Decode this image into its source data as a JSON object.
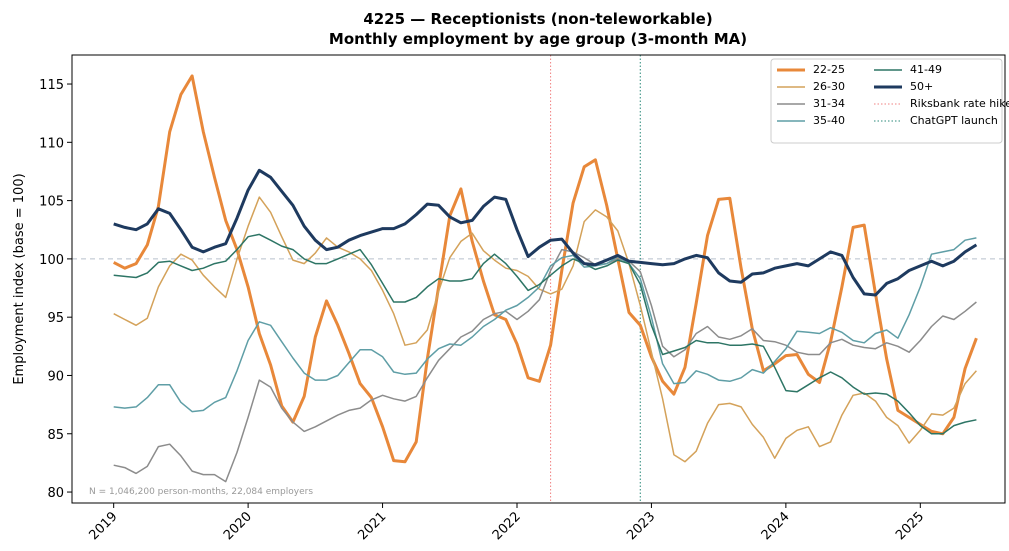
{
  "chart_data": {
    "type": "line",
    "title": "4225 — Receptionists (non-teleworkable)",
    "subtitle": "Monthly employment by age group (3-month MA)",
    "y_label": "Employment index (base = 100)",
    "annotation": "N = 1,046,200 person-months, 22,084 employers",
    "x": [
      2019,
      2019.083,
      2019.167,
      2019.25,
      2019.333,
      2019.417,
      2019.5,
      2019.583,
      2019.667,
      2019.75,
      2019.833,
      2019.917,
      2020,
      2020.083,
      2020.167,
      2020.25,
      2020.333,
      2020.417,
      2020.5,
      2020.583,
      2020.667,
      2020.75,
      2020.833,
      2020.917,
      2021,
      2021.083,
      2021.167,
      2021.25,
      2021.333,
      2021.417,
      2021.5,
      2021.583,
      2021.667,
      2021.75,
      2021.833,
      2021.917,
      2022,
      2022.083,
      2022.167,
      2022.25,
      2022.333,
      2022.417,
      2022.5,
      2022.583,
      2022.667,
      2022.75,
      2022.833,
      2022.917,
      2023,
      2023.083,
      2023.167,
      2023.25,
      2023.333,
      2023.417,
      2023.5,
      2023.583,
      2023.667,
      2023.75,
      2023.833,
      2023.917,
      2024,
      2024.083,
      2024.167,
      2024.25,
      2024.333,
      2024.417,
      2024.5,
      2024.583,
      2024.667,
      2024.75,
      2024.833,
      2024.917,
      2025,
      2025.083,
      2025.167,
      2025.25,
      2025.333,
      2025.417
    ],
    "xlim": [
      2018.69,
      2025.63
    ],
    "xticks": [
      2019,
      2020,
      2021,
      2022,
      2023,
      2024,
      2025
    ],
    "ylim": [
      79.06,
      117.49
    ],
    "yticks": [
      80,
      85,
      90,
      95,
      100,
      105,
      110,
      115
    ],
    "hline": 100,
    "legend": "upper right",
    "series": [
      {
        "name": "22-25",
        "color": "#e8883a",
        "linewidth": 3,
        "values": [
          99.7,
          99.2,
          99.6,
          101.2,
          104.5,
          110.9,
          114.1,
          115.7,
          110.9,
          107.0,
          103.3,
          100.8,
          97.6,
          93.6,
          90.9,
          87.4,
          86.0,
          88.2,
          93.3,
          96.4,
          94.3,
          91.9,
          89.3,
          88.1,
          85.6,
          82.7,
          82.6,
          84.3,
          91.4,
          97.6,
          103.7,
          106.0,
          101.5,
          98.1,
          95.2,
          94.8,
          92.7,
          89.8,
          89.5,
          92.6,
          99.0,
          104.8,
          107.9,
          108.5,
          104.6,
          100.0,
          95.4,
          94.3,
          91.6,
          89.5,
          88.4,
          90.7,
          96.2,
          102.0,
          105.1,
          105.2,
          99.2,
          94.0,
          90.4,
          91.0,
          91.7,
          91.8,
          90.1,
          89.4,
          92.9,
          97.6,
          102.7,
          102.9,
          97.0,
          91.4,
          87.0,
          86.4,
          85.8,
          85.2,
          85.0,
          86.4,
          90.6,
          93.2
        ]
      },
      {
        "name": "26-30",
        "color": "#d4a25a",
        "linewidth": 1.5,
        "values": [
          95.3,
          94.8,
          94.3,
          94.9,
          97.6,
          99.4,
          100.4,
          99.9,
          98.6,
          97.6,
          96.7,
          100.0,
          102.8,
          105.3,
          104.0,
          101.9,
          99.9,
          99.6,
          100.5,
          101.8,
          101.0,
          100.6,
          100.0,
          99.0,
          97.3,
          95.3,
          92.6,
          92.8,
          93.9,
          97.2,
          100.1,
          101.5,
          102.2,
          100.7,
          99.9,
          99.2,
          99.0,
          98.5,
          97.4,
          97.0,
          97.4,
          99.4,
          103.2,
          104.2,
          103.6,
          102.4,
          99.6,
          96.0,
          92.0,
          88.0,
          83.2,
          82.6,
          83.5,
          85.9,
          87.5,
          87.6,
          87.3,
          85.8,
          84.7,
          82.9,
          84.6,
          85.3,
          85.6,
          83.9,
          84.3,
          86.6,
          88.3,
          88.5,
          87.8,
          86.4,
          85.7,
          84.2,
          85.3,
          86.7,
          86.6,
          87.2,
          89.3,
          90.4
        ]
      },
      {
        "name": "31-34",
        "color": "#8c8c8c",
        "linewidth": 1.5,
        "values": [
          82.3,
          82.1,
          81.6,
          82.2,
          83.9,
          84.1,
          83.1,
          81.8,
          81.5,
          81.5,
          80.9,
          83.4,
          86.4,
          89.6,
          89.0,
          87.2,
          86.0,
          85.2,
          85.6,
          86.1,
          86.6,
          87.0,
          87.2,
          87.9,
          88.3,
          88.0,
          87.8,
          88.2,
          89.8,
          91.3,
          92.3,
          93.3,
          93.8,
          94.8,
          95.3,
          95.5,
          94.8,
          95.5,
          96.5,
          99.0,
          100.8,
          100.6,
          100.1,
          99.5,
          99.6,
          100.0,
          99.8,
          98.9,
          96.0,
          92.5,
          91.6,
          92.2,
          93.6,
          94.2,
          93.3,
          93.1,
          93.4,
          94.0,
          93.0,
          92.9,
          92.6,
          92.0,
          91.8,
          91.8,
          92.8,
          93.1,
          92.6,
          92.4,
          92.3,
          92.8,
          92.5,
          92.0,
          93.0,
          94.2,
          95.1,
          94.8,
          95.5,
          96.3
        ]
      },
      {
        "name": "35-40",
        "color": "#5f9ea6",
        "linewidth": 1.5,
        "values": [
          87.3,
          87.2,
          87.3,
          88.1,
          89.2,
          89.2,
          87.7,
          86.9,
          87.0,
          87.7,
          88.1,
          90.4,
          93.0,
          94.6,
          94.3,
          92.9,
          91.5,
          90.2,
          89.6,
          89.6,
          90.0,
          91.1,
          92.2,
          92.2,
          91.6,
          90.3,
          90.1,
          90.2,
          91.4,
          92.3,
          92.7,
          92.6,
          93.3,
          94.2,
          94.8,
          95.6,
          96.0,
          96.7,
          97.6,
          99.4,
          100.1,
          100.3,
          99.3,
          99.4,
          99.6,
          100.2,
          99.6,
          98.3,
          95.0,
          91.0,
          89.3,
          89.4,
          90.4,
          90.1,
          89.6,
          89.5,
          89.8,
          90.5,
          90.2,
          91.2,
          92.3,
          93.8,
          93.7,
          93.6,
          94.1,
          93.7,
          93.0,
          92.8,
          93.6,
          93.9,
          93.2,
          95.2,
          97.6,
          100.4,
          100.6,
          100.8,
          101.6,
          101.8
        ]
      },
      {
        "name": "41-49",
        "color": "#2d7565",
        "linewidth": 1.5,
        "values": [
          98.6,
          98.5,
          98.4,
          98.8,
          99.7,
          99.8,
          99.4,
          99.0,
          99.2,
          99.6,
          99.8,
          100.8,
          101.9,
          102.1,
          101.6,
          101.1,
          100.8,
          100.0,
          99.6,
          99.6,
          100.0,
          100.4,
          100.8,
          99.5,
          97.9,
          96.3,
          96.3,
          96.7,
          97.6,
          98.3,
          98.1,
          98.1,
          98.3,
          99.6,
          100.4,
          99.6,
          98.5,
          97.3,
          97.8,
          98.6,
          99.4,
          100.0,
          99.6,
          99.1,
          99.4,
          99.9,
          99.6,
          97.8,
          94.3,
          91.8,
          92.1,
          92.4,
          93.0,
          92.8,
          92.8,
          92.6,
          92.6,
          92.7,
          92.5,
          90.7,
          88.7,
          88.6,
          89.2,
          89.8,
          90.3,
          89.8,
          89.0,
          88.4,
          88.5,
          88.4,
          87.8,
          86.8,
          85.7,
          85.0,
          85.0,
          85.7,
          86.0,
          86.2
        ]
      },
      {
        "name": "50+",
        "color": "#1e3a5f",
        "linewidth": 3,
        "values": [
          103.0,
          102.7,
          102.5,
          103.0,
          104.3,
          103.9,
          102.5,
          101.0,
          100.6,
          101.0,
          101.3,
          103.5,
          105.9,
          107.6,
          107.0,
          105.8,
          104.6,
          102.8,
          101.6,
          100.8,
          101.0,
          101.6,
          102.0,
          102.3,
          102.6,
          102.6,
          103.0,
          103.8,
          104.7,
          104.6,
          103.6,
          103.1,
          103.3,
          104.5,
          105.3,
          105.1,
          102.5,
          100.2,
          101.0,
          101.6,
          101.7,
          100.5,
          99.6,
          99.5,
          99.9,
          100.3,
          99.8,
          99.7,
          99.6,
          99.5,
          99.6,
          100.0,
          100.3,
          100.1,
          98.8,
          98.1,
          98.0,
          98.7,
          98.8,
          99.2,
          99.4,
          99.6,
          99.4,
          100.0,
          100.6,
          100.3,
          98.4,
          97.0,
          96.9,
          97.9,
          98.3,
          99.0,
          99.4,
          99.8,
          99.4,
          99.8,
          100.6,
          101.2
        ]
      }
    ],
    "events": [
      {
        "name": "Riksbank rate hike",
        "x": 2022.25,
        "color": "#f08080"
      },
      {
        "name": "ChatGPT launch",
        "x": 2022.917,
        "color": "#2a8a7a"
      }
    ]
  }
}
